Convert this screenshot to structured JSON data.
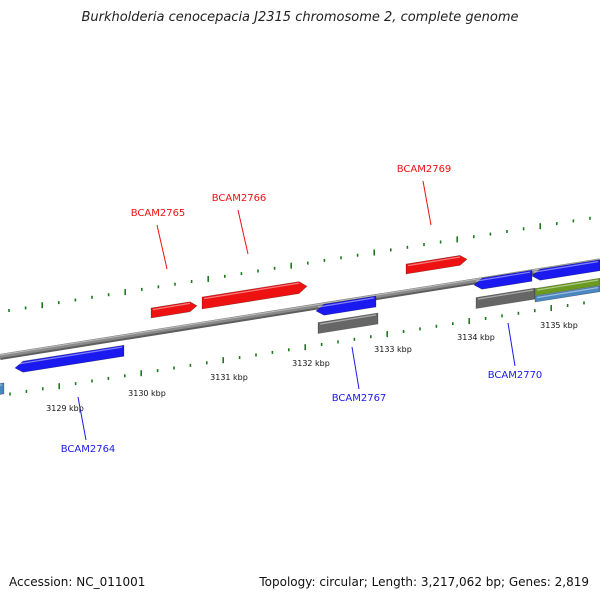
{
  "title": "Burkholderia cenocepacia J2315 chromosome 2, complete genome",
  "footer": {
    "accession": "Accession: NC_011001",
    "stats": "Topology: circular; Length: 3,217,062 bp; Genes: 2,819"
  },
  "colors": {
    "forward_gene": "#ee1111",
    "reverse_gene": "#1a1af0",
    "pseudo_gene": "#666666",
    "feature_green": "#6a9a20",
    "feature_steelblue": "#4a86c0",
    "tick_mark": "#1c7a1c",
    "backbone": "#8a8a8a"
  },
  "ruler": {
    "unit": "kbp",
    "ticks": [
      {
        "value": 3129,
        "label": "3129 kbp"
      },
      {
        "value": 3130,
        "label": "3130 kbp"
      },
      {
        "value": 3131,
        "label": "3131 kbp"
      },
      {
        "value": 3132,
        "label": "3132 kbp"
      },
      {
        "value": 3133,
        "label": "3133 kbp"
      },
      {
        "value": 3134,
        "label": "3134 kbp"
      },
      {
        "value": 3135,
        "label": "3135 kbp"
      }
    ]
  },
  "genes": [
    {
      "id": "BCAM2764",
      "label": "BCAM2764",
      "strand": "reverse"
    },
    {
      "id": "BCAM2765",
      "label": "BCAM2765",
      "strand": "forward"
    },
    {
      "id": "BCAM2766",
      "label": "BCAM2766",
      "strand": "forward"
    },
    {
      "id": "BCAM2767",
      "label": "BCAM2767",
      "strand": "reverse"
    },
    {
      "id": "BCAM2769",
      "label": "BCAM2769",
      "strand": "forward"
    },
    {
      "id": "BCAM2770",
      "label": "BCAM2770",
      "strand": "reverse"
    }
  ]
}
